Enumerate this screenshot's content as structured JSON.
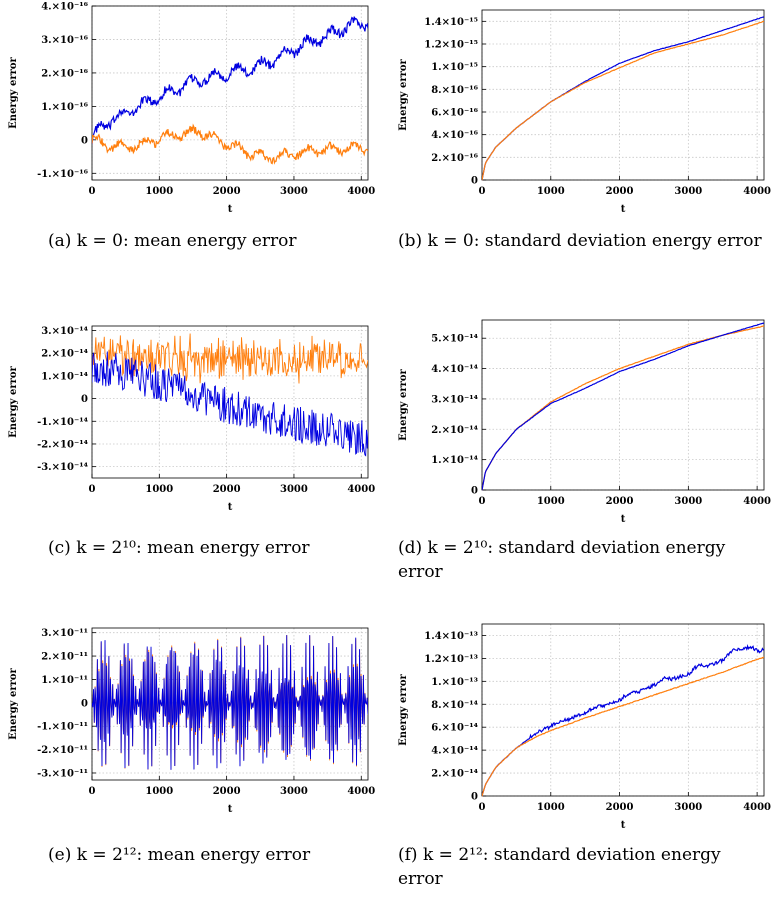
{
  "colors": {
    "series1": "#0000e0",
    "series2": "#ff7f0e",
    "grid": "#c8c8c8"
  },
  "chart_data": [
    {
      "type": "line",
      "caption": "(a) k = 0: mean energy error",
      "xlabel": "t",
      "ylabel": "Energy error",
      "xlim": [
        0,
        4100
      ],
      "ylim": [
        -1.2e-16,
        4e-16
      ],
      "xticks": [
        "0",
        "1000",
        "2000",
        "3000",
        "4000"
      ],
      "yticks": [
        {
          "value": -1e-16,
          "label": "-1.×10⁻¹⁶"
        },
        {
          "value": 0,
          "label": "0"
        },
        {
          "value": 1e-16,
          "label": "1.×10⁻¹⁶"
        },
        {
          "value": 2e-16,
          "label": "2.×10⁻¹⁶"
        },
        {
          "value": 3e-16,
          "label": "3.×10⁻¹⁶"
        },
        {
          "value": 4e-16,
          "label": "4.×10⁻¹⁶"
        }
      ],
      "grid": true,
      "series": [
        {
          "color": "#0000e0",
          "x": [
            0,
            100,
            300,
            500,
            800,
            1000,
            1300,
            1600,
            1800,
            2000,
            2300,
            2600,
            2900,
            3200,
            3500,
            3800,
            4100
          ],
          "values": [
            0,
            3e-17,
            6e-17,
            8e-17,
            1.1e-16,
            1.3e-16,
            1.55e-16,
            1.8e-16,
            1.9e-16,
            2e-16,
            2.1e-16,
            2.3e-16,
            2.6e-16,
            2.9e-16,
            3.1e-16,
            3.4e-16,
            3.5e-16
          ]
        },
        {
          "color": "#ff7f0e",
          "x": [
            0,
            200,
            500,
            800,
            1000,
            1300,
            1600,
            1800,
            2000,
            2300,
            2600,
            2900,
            3200,
            3500,
            3800,
            4100
          ],
          "values": [
            0,
            -1.5e-17,
            -2.5e-17,
            -1e-17,
            5e-18,
            1.5e-17,
            2.5e-17,
            5e-18,
            -1.5e-17,
            -3.5e-17,
            -5.5e-17,
            -4.5e-17,
            -3.5e-17,
            -3e-17,
            -2.5e-17,
            -2e-17
          ]
        }
      ]
    },
    {
      "type": "line",
      "caption": "(b) k = 0: standard deviation energy error",
      "xlabel": "t",
      "ylabel": "Energy error",
      "xlim": [
        0,
        4100
      ],
      "ylim": [
        0,
        1.5e-15
      ],
      "xticks": [
        "0",
        "1000",
        "2000",
        "3000",
        "4000"
      ],
      "yticks": [
        {
          "value": 0,
          "label": "0"
        },
        {
          "value": 2e-16,
          "label": "2.×10⁻¹⁶"
        },
        {
          "value": 4e-16,
          "label": "4.×10⁻¹⁶"
        },
        {
          "value": 6e-16,
          "label": "6.×10⁻¹⁶"
        },
        {
          "value": 8e-16,
          "label": "8.×10⁻¹⁶"
        },
        {
          "value": 1e-15,
          "label": "1.×10⁻¹⁵"
        },
        {
          "value": 1.2e-15,
          "label": "1.2×10⁻¹⁵"
        },
        {
          "value": 1.4e-15,
          "label": "1.4×10⁻¹⁵"
        }
      ],
      "grid": true,
      "series": [
        {
          "color": "#0000e0",
          "x": [
            0,
            50,
            200,
            500,
            1000,
            1500,
            2000,
            2500,
            3000,
            3500,
            4100
          ],
          "values": [
            0,
            1.5e-16,
            2.9e-16,
            4.6e-16,
            6.9e-16,
            8.7e-16,
            1.03e-15,
            1.14e-15,
            1.22e-15,
            1.32e-15,
            1.44e-15
          ]
        },
        {
          "color": "#ff7f0e",
          "x": [
            0,
            50,
            200,
            500,
            1000,
            1500,
            2000,
            2500,
            3000,
            3500,
            4100
          ],
          "values": [
            0,
            1.5e-16,
            2.9e-16,
            4.6e-16,
            6.9e-16,
            8.6e-16,
            9.9e-16,
            1.12e-15,
            1.2e-15,
            1.28e-15,
            1.4e-15
          ]
        }
      ]
    },
    {
      "type": "line",
      "caption": "(c) k = 2¹⁰: mean energy error",
      "xlabel": "t",
      "ylabel": "Energy error",
      "xlim": [
        0,
        4100
      ],
      "ylim": [
        -3.5e-14,
        3.2e-14
      ],
      "xticks": [
        "0",
        "1000",
        "2000",
        "3000",
        "4000"
      ],
      "yticks": [
        {
          "value": -3e-14,
          "label": "-3.×10⁻¹⁴"
        },
        {
          "value": -2e-14,
          "label": "-2.×10⁻¹⁴"
        },
        {
          "value": -1e-14,
          "label": "-1.×10⁻¹⁴"
        },
        {
          "value": 0,
          "label": "0"
        },
        {
          "value": 1e-14,
          "label": "1.×10⁻¹⁴"
        },
        {
          "value": 2e-14,
          "label": "2.×10⁻¹⁴"
        },
        {
          "value": 3e-14,
          "label": "3.×10⁻¹⁴"
        }
      ],
      "grid": true,
      "series": [
        {
          "color": "#ff7f0e",
          "x": [
            0,
            1000,
            2000,
            3000,
            4100
          ],
          "values": [
            1.9e-14,
            1.8e-14,
            1.75e-14,
            1.75e-14,
            1.75e-14
          ]
        },
        {
          "color": "#0000e0",
          "x": [
            0,
            1000,
            2000,
            3000,
            4100
          ],
          "values": [
            1.5e-14,
            7e-15,
            -3e-15,
            -1.1e-14,
            -1.8e-14
          ]
        }
      ]
    },
    {
      "type": "line",
      "caption": "(d) k = 2¹⁰: standard deviation energy error",
      "xlabel": "t",
      "ylabel": "Energy error",
      "xlim": [
        0,
        4100
      ],
      "ylim": [
        0,
        5.6e-14
      ],
      "xticks": [
        "0",
        "1000",
        "2000",
        "3000",
        "4000"
      ],
      "yticks": [
        {
          "value": 0,
          "label": "0"
        },
        {
          "value": 1e-14,
          "label": "1.×10⁻¹⁴"
        },
        {
          "value": 2e-14,
          "label": "2.×10⁻¹⁴"
        },
        {
          "value": 3e-14,
          "label": "3.×10⁻¹⁴"
        },
        {
          "value": 4e-14,
          "label": "4.×10⁻¹⁴"
        },
        {
          "value": 5e-14,
          "label": "5.×10⁻¹⁴"
        }
      ],
      "grid": true,
      "series": [
        {
          "color": "#ff7f0e",
          "x": [
            0,
            50,
            200,
            500,
            1000,
            1500,
            2000,
            2500,
            3000,
            3500,
            4100
          ],
          "values": [
            0,
            6e-15,
            1.2e-14,
            2e-14,
            2.9e-14,
            3.5e-14,
            4e-14,
            4.4e-14,
            4.8e-14,
            5.1e-14,
            5.4e-14
          ]
        },
        {
          "color": "#0000e0",
          "x": [
            0,
            50,
            200,
            500,
            1000,
            1500,
            2000,
            2500,
            3000,
            3500,
            4100
          ],
          "values": [
            0,
            6e-15,
            1.2e-14,
            2e-14,
            2.85e-14,
            3.35e-14,
            3.9e-14,
            4.3e-14,
            4.75e-14,
            5.1e-14,
            5.5e-14
          ]
        }
      ]
    },
    {
      "type": "line",
      "caption": "(e) k = 2¹²: mean energy error",
      "xlabel": "t",
      "ylabel": "Energy error",
      "xlim": [
        0,
        4100
      ],
      "ylim": [
        -3.3e-11,
        3.2e-11
      ],
      "xticks": [
        "0",
        "1000",
        "2000",
        "3000",
        "4000"
      ],
      "yticks": [
        {
          "value": -3e-11,
          "label": "-3.×10⁻¹¹"
        },
        {
          "value": -2e-11,
          "label": "-2.×10⁻¹¹"
        },
        {
          "value": -1e-11,
          "label": "-1.×10⁻¹¹"
        },
        {
          "value": 0,
          "label": "0"
        },
        {
          "value": 1e-11,
          "label": "1.×10⁻¹¹"
        },
        {
          "value": 2e-11,
          "label": "2.×10⁻¹¹"
        },
        {
          "value": 3e-11,
          "label": "3.×10⁻¹¹"
        }
      ],
      "grid": true,
      "series": [
        {
          "color": "#ff7f0e",
          "x": [
            0,
            4100
          ],
          "values": [
            0,
            0
          ]
        },
        {
          "color": "#0000e0",
          "x": [
            0,
            4100
          ],
          "values": [
            0,
            0
          ]
        }
      ]
    },
    {
      "type": "line",
      "caption": "(f) k = 2¹²: standard deviation energy error",
      "xlabel": "t",
      "ylabel": "Energy error",
      "xlim": [
        0,
        4100
      ],
      "ylim": [
        0,
        1.5e-13
      ],
      "xticks": [
        "0",
        "1000",
        "2000",
        "3000",
        "4000"
      ],
      "yticks": [
        {
          "value": 0,
          "label": "0"
        },
        {
          "value": 2e-14,
          "label": "2.×10⁻¹⁴"
        },
        {
          "value": 4e-14,
          "label": "4.×10⁻¹⁴"
        },
        {
          "value": 6e-14,
          "label": "6.×10⁻¹⁴"
        },
        {
          "value": 8e-14,
          "label": "8.×10⁻¹⁴"
        },
        {
          "value": 1e-13,
          "label": "1.×10⁻¹³"
        },
        {
          "value": 1.2e-13,
          "label": "1.2×10⁻¹³"
        },
        {
          "value": 1.4e-13,
          "label": "1.4×10⁻¹³"
        }
      ],
      "grid": true,
      "series": [
        {
          "color": "#0000e0",
          "x": [
            0,
            50,
            200,
            500,
            800,
            1000,
            1500,
            2000,
            2500,
            3000,
            3500,
            3900,
            4100
          ],
          "values": [
            0,
            1e-14,
            2.5e-14,
            4.2e-14,
            5.5e-14,
            6e-14,
            7.2e-14,
            8.3e-14,
            9.6e-14,
            1.06e-13,
            1.18e-13,
            1.3e-13,
            1.23e-13
          ]
        },
        {
          "color": "#ff7f0e",
          "x": [
            0,
            50,
            200,
            500,
            800,
            1000,
            1500,
            2000,
            2500,
            3000,
            3500,
            3900,
            4100
          ],
          "values": [
            0,
            1e-14,
            2.5e-14,
            4.2e-14,
            5.2e-14,
            5.7e-14,
            6.8e-14,
            7.8e-14,
            8.8e-14,
            9.8e-14,
            1.08e-13,
            1.17e-13,
            1.21e-13
          ]
        }
      ]
    }
  ],
  "captions": [
    "(a) k = 0: mean energy error",
    "(b) k = 0: standard deviation energy error",
    "(c) k = 2¹⁰: mean energy error",
    "(d) k = 2¹⁰: standard deviation energy error",
    "(e) k = 2¹²: mean energy error",
    "(f) k = 2¹²: standard deviation energy error"
  ]
}
